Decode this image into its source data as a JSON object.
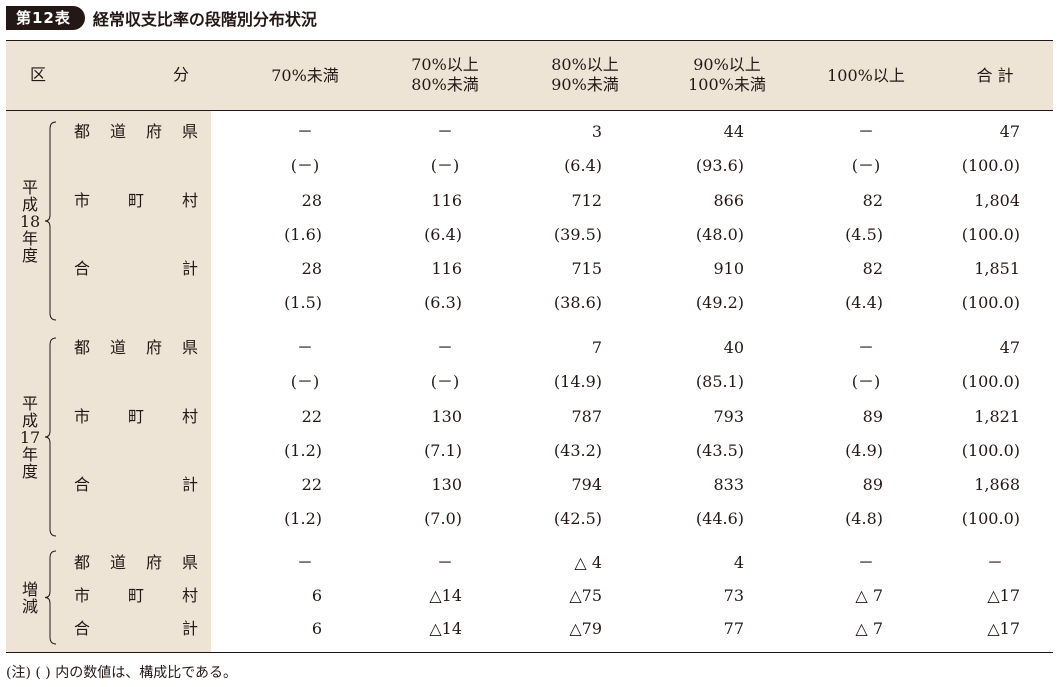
{
  "title": {
    "badge": "第12表",
    "text": "経常収支比率の段階別分布状況"
  },
  "header": {
    "col0_left": "区",
    "col0_right": "分",
    "cols": [
      "70%未満",
      "70%以上\n80%未満",
      "80%以上\n90%未満",
      "90%以上\n100%未満",
      "100%以上",
      "合 計"
    ]
  },
  "groups": [
    {
      "label": "平成18年度",
      "rows": [
        {
          "name": "都 道 府 県",
          "values": [
            "－",
            "－",
            "3",
            "44",
            "－",
            "47"
          ],
          "pcts": [
            "(－)",
            "(－)",
            "(6.4)",
            "(93.6)",
            "(－)",
            "(100.0)"
          ]
        },
        {
          "name": "市 町 村",
          "values": [
            "28",
            "116",
            "712",
            "866",
            "82",
            "1,804"
          ],
          "pcts": [
            "(1.6)",
            "(6.4)",
            "(39.5)",
            "(48.0)",
            "(4.5)",
            "(100.0)"
          ]
        },
        {
          "name": "合 計",
          "values": [
            "28",
            "116",
            "715",
            "910",
            "82",
            "1,851"
          ],
          "pcts": [
            "(1.5)",
            "(6.3)",
            "(38.6)",
            "(49.2)",
            "(4.4)",
            "(100.0)"
          ]
        }
      ]
    },
    {
      "label": "平成17年度",
      "rows": [
        {
          "name": "都 道 府 県",
          "values": [
            "－",
            "－",
            "7",
            "40",
            "－",
            "47"
          ],
          "pcts": [
            "(－)",
            "(－)",
            "(14.9)",
            "(85.1)",
            "(－)",
            "(100.0)"
          ]
        },
        {
          "name": "市 町 村",
          "values": [
            "22",
            "130",
            "787",
            "793",
            "89",
            "1,821"
          ],
          "pcts": [
            "(1.2)",
            "(7.1)",
            "(43.2)",
            "(43.5)",
            "(4.9)",
            "(100.0)"
          ]
        },
        {
          "name": "合 計",
          "values": [
            "22",
            "130",
            "794",
            "833",
            "89",
            "1,868"
          ],
          "pcts": [
            "(1.2)",
            "(7.0)",
            "(42.5)",
            "(44.6)",
            "(4.8)",
            "(100.0)"
          ]
        }
      ]
    }
  ],
  "diff": {
    "label": "増減",
    "rows": [
      {
        "name": "都 道 府 県",
        "values": [
          "－",
          "－",
          "△ 4",
          "4",
          "－",
          "－"
        ]
      },
      {
        "name": "市 町 村",
        "values": [
          "6",
          "△14",
          "△75",
          "73",
          "△ 7",
          "△17"
        ]
      },
      {
        "name": "合 計",
        "values": [
          "6",
          "△14",
          "△79",
          "77",
          "△ 7",
          "△17"
        ]
      }
    ]
  },
  "note": "(注) ( ) 内の数値は、構成比である。"
}
